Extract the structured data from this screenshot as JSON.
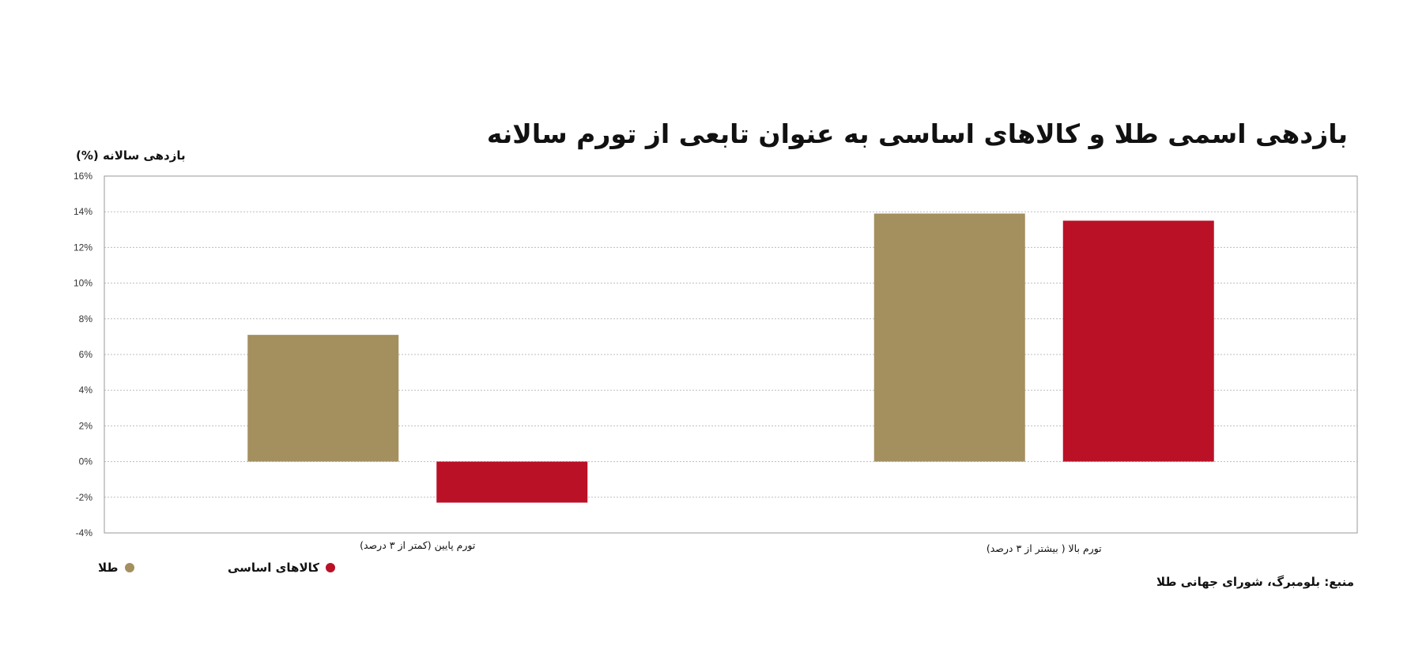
{
  "chart_data": {
    "type": "bar",
    "title": "بازدهی اسمی طلا و کالاهای اساسی به عنوان تابعی از تورم سالانه",
    "ylabel": "بازدهی سالانه (%)",
    "xlabel": "",
    "ylim": [
      -4,
      16
    ],
    "yticks": [
      -4,
      -2,
      0,
      2,
      4,
      6,
      8,
      10,
      12,
      14,
      16
    ],
    "ytick_labels": [
      "-4%",
      "-2%",
      "0%",
      "2%",
      "4%",
      "6%",
      "8%",
      "10%",
      "12%",
      "14%",
      "16%"
    ],
    "categories": [
      "تورم پایین (کمتر از ۳ درصد)",
      "تورم بالا ( بیشتر از ۳ درصد)"
    ],
    "series": [
      {
        "name": "طلا",
        "values": [
          7.1,
          13.9
        ],
        "color": "#a48f5f"
      },
      {
        "name": "کالاهای اساسی",
        "values": [
          -2.3,
          13.5
        ],
        "color": "#ba1127"
      }
    ],
    "grid": true,
    "legend_position": "bottom-left",
    "source": "منبع: بلومبرگ، شورای جهانی طلا"
  }
}
